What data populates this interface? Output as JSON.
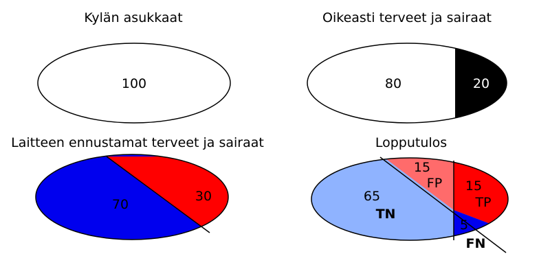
{
  "panels": {
    "villagers": {
      "title": "Kylän asukkaat",
      "count": "100"
    },
    "true_status": {
      "title": "Oikeasti terveet ja sairaat",
      "healthy": "80",
      "sick": "20"
    },
    "device_prediction": {
      "title": "Laitteen ennustamat terveet ja sairaat",
      "predicted_healthy": "70",
      "predicted_sick": "30"
    },
    "outcome": {
      "title": "Lopputulos",
      "tn_value": "65",
      "tn_label": "TN",
      "fp_value": "15",
      "fp_label": "FP",
      "tp_value": "15",
      "tp_label": "TP",
      "fn_value": "5",
      "fn_label": "FN"
    }
  },
  "colors": {
    "healthy_white": "#ffffff",
    "sick_black": "#000000",
    "predicted_healthy_blue": "#0000ee",
    "predicted_sick_red": "#ff0000",
    "tn_light_blue": "#8fb3ff",
    "fp_light_red": "#ff6b6b",
    "tp_red": "#ff0000",
    "fn_blue": "#0000ee"
  }
}
